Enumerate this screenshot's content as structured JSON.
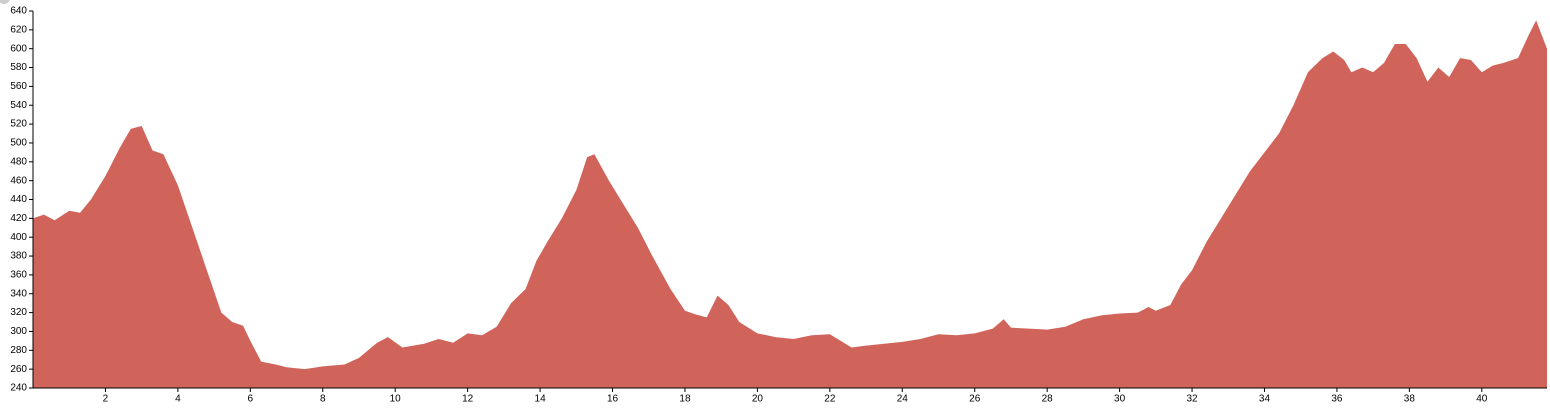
{
  "chart_data": {
    "type": "area",
    "color": "#d0635a",
    "x": [
      0,
      0.3,
      0.6,
      1.0,
      1.3,
      1.6,
      2.0,
      2.4,
      2.7,
      3.0,
      3.3,
      3.6,
      4.0,
      4.4,
      4.8,
      5.2,
      5.5,
      5.8,
      6.0,
      6.3,
      6.7,
      7.0,
      7.5,
      8.0,
      8.6,
      9.0,
      9.5,
      9.8,
      10.2,
      10.8,
      11.2,
      11.6,
      12.0,
      12.4,
      12.8,
      13.2,
      13.6,
      13.9,
      14.2,
      14.6,
      15.0,
      15.3,
      15.5,
      15.9,
      16.3,
      16.7,
      17.1,
      17.6,
      18.0,
      18.3,
      18.6,
      18.9,
      19.2,
      19.5,
      20.0,
      20.5,
      21.0,
      21.5,
      22.0,
      22.3,
      22.6,
      23.0,
      23.5,
      24.0,
      24.5,
      25.0,
      25.5,
      26.0,
      26.5,
      26.8,
      27.0,
      27.5,
      28.0,
      28.5,
      29.0,
      29.5,
      30.0,
      30.5,
      30.8,
      31.0,
      31.4,
      31.7,
      32.0,
      32.4,
      32.8,
      33.2,
      33.6,
      34.0,
      34.4,
      34.8,
      35.2,
      35.6,
      35.9,
      36.2,
      36.4,
      36.7,
      37.0,
      37.3,
      37.6,
      37.9,
      38.2,
      38.5,
      38.8,
      39.1,
      39.4,
      39.7,
      40.0,
      40.3,
      40.6,
      41.0,
      41.3,
      41.5,
      41.8
    ],
    "values": [
      420,
      424,
      418,
      428,
      426,
      440,
      465,
      495,
      515,
      518,
      492,
      488,
      455,
      410,
      365,
      320,
      310,
      306,
      290,
      268,
      265,
      262,
      260,
      263,
      265,
      272,
      288,
      294,
      283,
      287,
      292,
      288,
      298,
      296,
      305,
      330,
      345,
      375,
      395,
      420,
      450,
      485,
      488,
      460,
      435,
      410,
      380,
      345,
      322,
      318,
      315,
      338,
      328,
      310,
      298,
      294,
      292,
      296,
      297,
      290,
      283,
      285,
      287,
      289,
      292,
      297,
      296,
      298,
      303,
      313,
      304,
      303,
      302,
      305,
      313,
      317,
      319,
      320,
      326,
      322,
      328,
      350,
      365,
      395,
      420,
      445,
      470,
      490,
      510,
      540,
      575,
      590,
      597,
      588,
      575,
      580,
      575,
      585,
      605,
      605,
      590,
      565,
      580,
      570,
      590,
      588,
      575,
      582,
      585,
      590,
      615,
      630,
      600
    ],
    "xlim": [
      0,
      41.8
    ],
    "ylim": [
      240,
      640
    ],
    "xticks": [
      2,
      4,
      6,
      8,
      10,
      12,
      14,
      16,
      18,
      20,
      22,
      24,
      26,
      28,
      30,
      32,
      34,
      36,
      38,
      40
    ],
    "yticks": [
      240,
      260,
      280,
      300,
      320,
      340,
      360,
      380,
      400,
      420,
      440,
      460,
      480,
      500,
      520,
      540,
      560,
      580,
      600,
      620,
      640
    ]
  }
}
